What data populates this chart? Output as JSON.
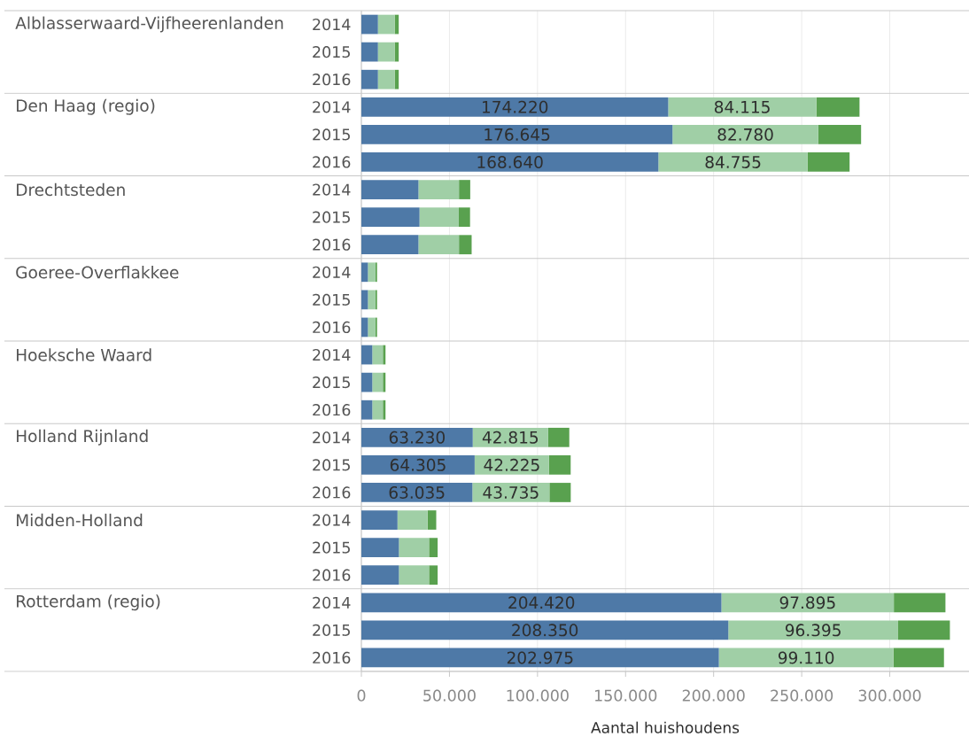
{
  "chart_data": {
    "type": "bar",
    "orientation": "horizontal",
    "stacked": true,
    "categories": [
      "2014",
      "2015",
      "2016",
      "2014",
      "2015",
      "2016",
      "2014",
      "2015",
      "2016",
      "2014",
      "2015",
      "2016",
      "2014",
      "2015",
      "2016",
      "2014",
      "2015",
      "2016",
      "2014",
      "2015",
      "2016",
      "2014",
      "2015",
      "2016"
    ],
    "annotations": [
      "Alblasserwaard-Vijfheerenlanden",
      "Den Haag (regio)",
      "Drechtsteden",
      "Goeree-Overflakkee",
      "Hoeksche Waard",
      "Holland Rijnland",
      "Midden-Holland",
      "Rotterdam (regio)"
    ],
    "series": [
      {
        "color": "#4e79a7",
        "values": [
          9400,
          9400,
          9400,
          174220,
          176645,
          168640,
          32400,
          33000,
          32400,
          3700,
          3700,
          3700,
          6200,
          6200,
          6200,
          63230,
          64305,
          63035,
          20500,
          21300,
          21300,
          204420,
          208350,
          202975
        ],
        "value_labels": [
          null,
          null,
          null,
          "174.220",
          "176.645",
          "168.640",
          null,
          null,
          null,
          null,
          null,
          null,
          null,
          null,
          null,
          "63.230",
          "64.305",
          "63.035",
          null,
          null,
          null,
          "204.420",
          "208.350",
          "202.975"
        ]
      },
      {
        "color": "#a0cfa6",
        "values": [
          9500,
          9500,
          9500,
          84115,
          82780,
          84755,
          23000,
          22300,
          23000,
          4300,
          4300,
          4300,
          6000,
          6000,
          6000,
          42815,
          42225,
          43735,
          17100,
          17100,
          17100,
          97895,
          96395,
          99110
        ],
        "value_labels": [
          null,
          null,
          null,
          "84.115",
          "82.780",
          "84.755",
          null,
          null,
          null,
          null,
          null,
          null,
          null,
          null,
          null,
          "42.815",
          "42.225",
          "43.735",
          null,
          null,
          null,
          "97.895",
          "96.395",
          "99.110"
        ]
      },
      {
        "color": "#59a14f",
        "values": [
          2300,
          2300,
          2300,
          24500,
          24300,
          23800,
          6400,
          6400,
          7200,
          900,
          900,
          900,
          1500,
          1500,
          1500,
          12000,
          12300,
          12100,
          4900,
          4900,
          4900,
          29300,
          29400,
          28700
        ]
      }
    ],
    "xlabel": "Aantal huishoudens",
    "xlim": [
      0,
      345000
    ],
    "xticks": [
      0,
      {
        "value": 50000,
        "label": "50.000"
      },
      {
        "value": 100000,
        "label": "100.000"
      },
      {
        "value": 150000,
        "label": "150.000"
      },
      {
        "value": 200000,
        "label": "200.000"
      },
      {
        "value": 250000,
        "label": "250.000"
      },
      {
        "value": 300000,
        "label": "300.000"
      }
    ],
    "grid": "x"
  }
}
